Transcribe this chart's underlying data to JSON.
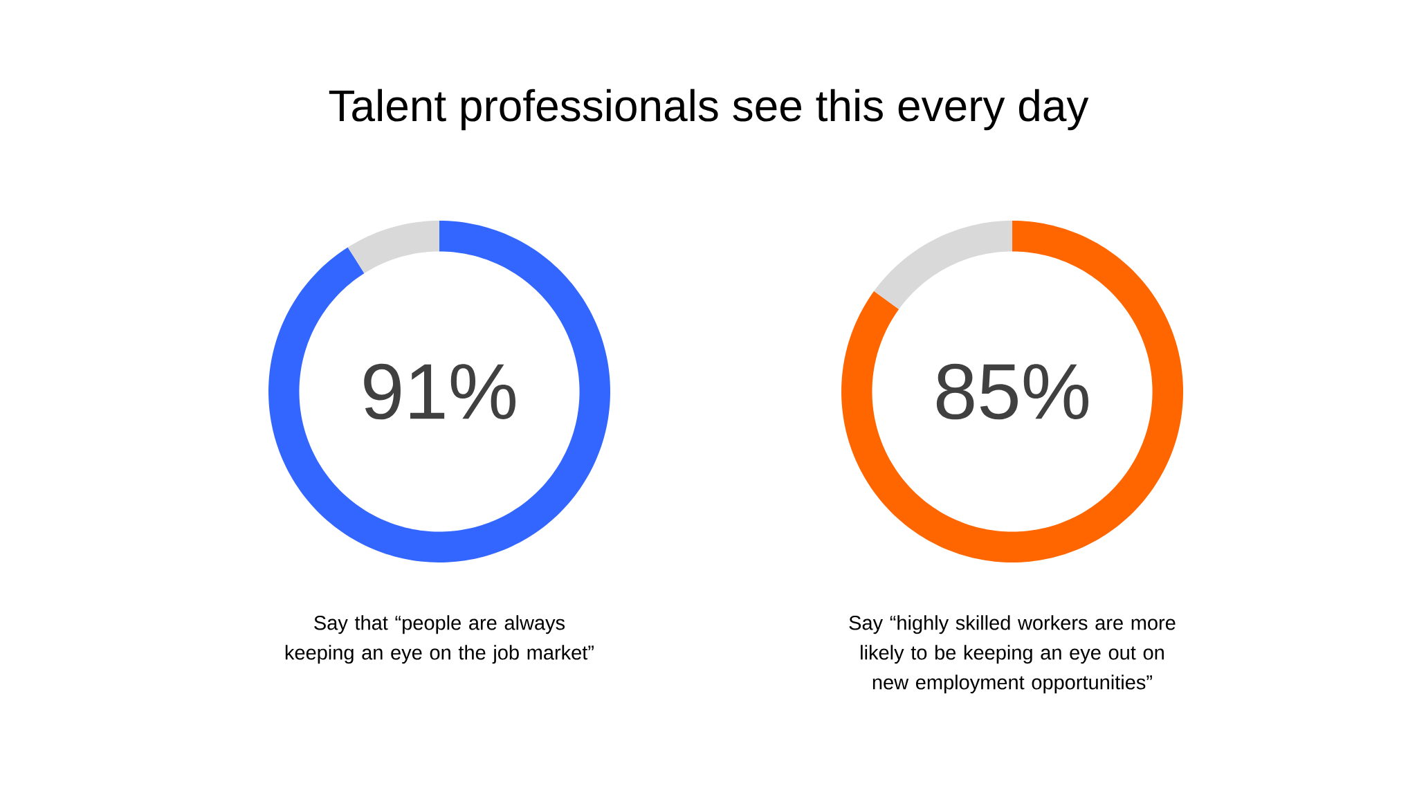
{
  "chart_data": [
    {
      "type": "donut",
      "title": "Talent professionals see this every day",
      "categories": [
        null,
        null
      ],
      "values": [
        91,
        9
      ],
      "colors": [
        "#3366ff",
        "#d9d9d9"
      ],
      "value_labels": [
        "91%",
        null
      ],
      "annotations": [
        "Say that “people are always keeping an eye on the job market”"
      ]
    },
    {
      "type": "donut",
      "categories": [
        null,
        null
      ],
      "values": [
        85,
        15
      ],
      "colors": [
        "#ff6600",
        "#d9d9d9"
      ],
      "value_labels": [
        "85%",
        null
      ],
      "annotations": [
        "Say “highly skilled workers are more likely to be keeping an eye out on new employment opportunities”"
      ]
    }
  ]
}
